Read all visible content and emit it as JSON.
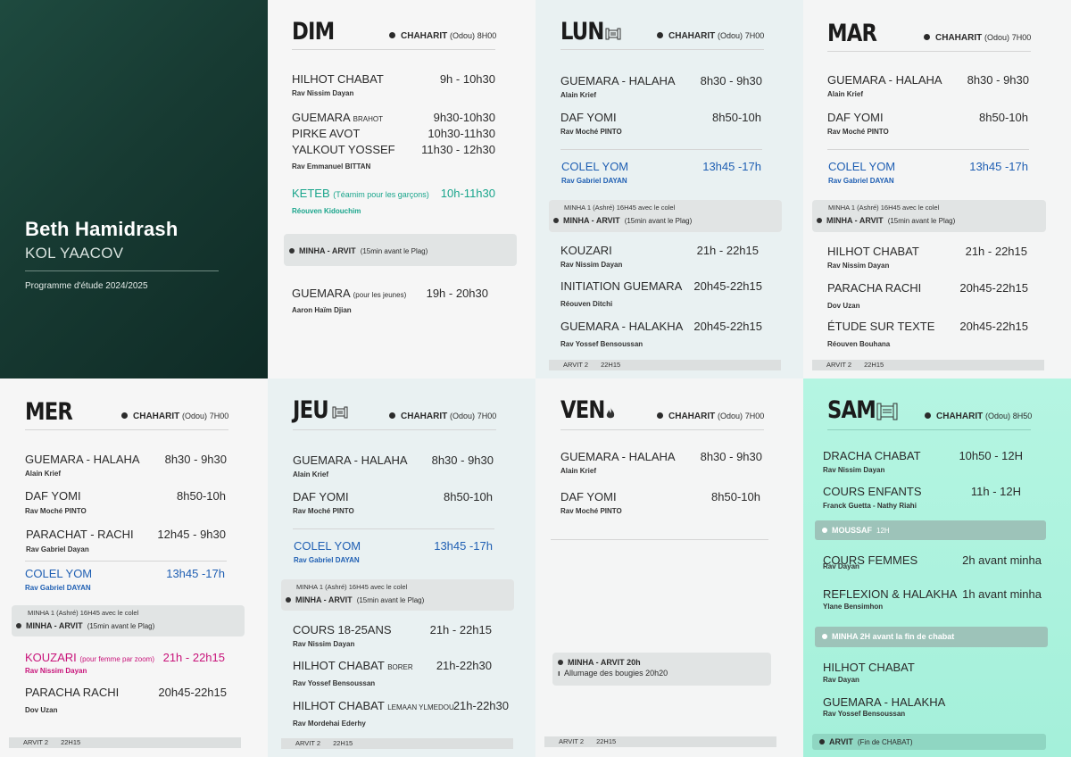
{
  "cover": {
    "title": "Beth Hamidrash",
    "subtitle": "KOL YAACOV",
    "program": "Programme d'étude 2024/2025"
  },
  "shaharit_label": "CHAHARIT",
  "odou": "(Odou)",
  "minha_arvit": "MINHA - ARVIT",
  "plag": "(15min avant le Plag)",
  "minha1": "MINHA 1 (Ashré) 16H45 avec le colel",
  "arvit2": "ARVIT 2",
  "arvit2_time": "22H15",
  "dim": {
    "day": "DIM",
    "shaharit": "8H00",
    "s1_name": "HILHOT CHABAT",
    "s1_time": "9h - 10h30",
    "s1_rav": "Rav Nissim Dayan",
    "s2_name": "GUEMARA",
    "s2_sub": "BRAHOT",
    "s2_time": "9h30-10h30",
    "s3_name": "PIRKE AVOT",
    "s3_time": "10h30-11h30",
    "s4_name": "YALKOUT YOSSEF",
    "s4_time": "11h30 - 12h30",
    "s4_rav": "Rav Emmanuel  BITTAN",
    "s5_name": "KETEB",
    "s5_sub": "(Téamim pour les garçons)",
    "s5_time": "10h-11h30",
    "s5_rav": "Réouven Kidouchim",
    "s6_name": "GUEMARA",
    "s6_sub": "(pour les jeunes)",
    "s6_time": "19h - 20h30",
    "s6_rav": "Aaron Haïm Djian"
  },
  "lun": {
    "day": "LUN",
    "shaharit": "7H00",
    "s1_name": "GUEMARA - HALAHA",
    "s1_time": "8h30 - 9h30",
    "s1_rav": "Alain Krief",
    "s2_name": "DAF YOMI",
    "s2_time": "8h50-10h",
    "s2_rav": "Rav Moché PINTO",
    "s3_name": "COLEL YOM",
    "s3_time": "13h45 -17h",
    "s3_rav": "Rav Gabriel DAYAN",
    "s4_name": "KOUZARI",
    "s4_time": "21h - 22h15",
    "s4_rav": "Rav Nissim Dayan",
    "s5_name": "INITIATION GUEMARA",
    "s5_time": "20h45-22h15",
    "s5_rav": "Réouven Ditchi",
    "s6_name": "GUEMARA - HALAKHA",
    "s6_time": "20h45-22h15",
    "s6_rav": "Rav Yossef Bensoussan"
  },
  "mar": {
    "day": "MAR",
    "shaharit": "7H00",
    "s1_name": "GUEMARA - HALAHA",
    "s1_time": "8h30 - 9h30",
    "s1_rav": "Alain Krief",
    "s2_name": "DAF YOMI",
    "s2_time": "8h50-10h",
    "s2_rav": "Rav Moché PINTO",
    "s3_name": "COLEL YOM",
    "s3_time": "13h45 -17h",
    "s3_rav": "Rav Gabriel DAYAN",
    "s4_name": "HILHOT CHABAT",
    "s4_time": "21h - 22h15",
    "s4_rav": "Rav Nissim Dayan",
    "s5_name": "PARACHA RACHI",
    "s5_time": "20h45-22h15",
    "s5_rav": "Dov Uzan",
    "s6_name": "ÉTUDE SUR TEXTE",
    "s6_time": "20h45-22h15",
    "s6_rav": "Réouven Bouhana"
  },
  "mer": {
    "day": "MER",
    "shaharit": "7H00",
    "s1_name": "GUEMARA - HALAHA",
    "s1_time": "8h30 - 9h30",
    "s1_rav": "Alain Krief",
    "s2_name": "DAF YOMI",
    "s2_time": "8h50-10h",
    "s2_rav": "Rav Moché PINTO",
    "s3_name": "PARACHAT - RACHI",
    "s3_time": "12h45 - 9h30",
    "s3_rav": "Rav Gabriel Dayan",
    "s4_name": "COLEL YOM",
    "s4_time": "13h45 -17h",
    "s4_rav": "Rav Gabriel DAYAN",
    "s5_name": "KOUZARI",
    "s5_sub": "(pour femme par zoom)",
    "s5_time": "21h - 22h15",
    "s5_rav": "Rav Nissim Dayan",
    "s6_name": "PARACHA RACHI",
    "s6_time": "20h45-22h15",
    "s6_rav": "Dov Uzan"
  },
  "jeu": {
    "day": "JEU",
    "shaharit": "7H00",
    "s1_name": "GUEMARA - HALAHA",
    "s1_time": "8h30 - 9h30",
    "s1_rav": "Alain Krief",
    "s2_name": "DAF YOMI",
    "s2_time": "8h50-10h",
    "s2_rav": "Rav Moché PINTO",
    "s3_name": "COLEL YOM",
    "s3_time": "13h45 -17h",
    "s3_rav": "Rav Gabriel DAYAN",
    "s4_name": "COURS  18-25ANS",
    "s4_time": "21h - 22h15",
    "s4_rav": "Rav Nissim Dayan",
    "s5_name": "HILHOT CHABAT",
    "s5_sub": "BORER",
    "s5_time": "21h-22h30",
    "s5_rav": "Rav Yossef Bensoussan",
    "s6_name": "HILHOT CHABAT",
    "s6_sub": "LEMAAN YLMEDOU",
    "s6_time": "21h-22h30",
    "s6_rav": "Rav Mordehai Ederhy"
  },
  "ven": {
    "day": "VEN",
    "shaharit": "7H00",
    "s1_name": "GUEMARA - HALAHA",
    "s1_time": "8h30 - 9h30",
    "s1_rav": "Alain Krief",
    "s2_name": "DAF YOMI",
    "s2_time": "8h50-10h",
    "s2_rav": "Rav Moché PINTO",
    "box_line1": "MINHA - ARVIT  20h",
    "box_line2": "Allumage des bougies 20h20"
  },
  "sam": {
    "day": "SAM",
    "shaharit": "8H50",
    "s1_name": "DRACHA CHABAT",
    "s1_time": "10h50 - 12H",
    "s1_rav": "Rav Nissim Dayan",
    "s2_name": "COURS ENFANTS",
    "s2_time": "11h - 12H",
    "s2_rav": "Franck Guetta - Nathy Riahi",
    "moussaf": "MOUSSAF",
    "moussaf_time": "12H",
    "s3_name": "COURS FEMMES",
    "s3_time": "2h avant minha",
    "s3_rav": "Rav Dayan",
    "s4_name": "REFLEXION & HALAKHA",
    "s4_time": "1h avant minha",
    "s4_rav": "Ylane Bensimhon",
    "minha_bar": "MINHA  2H avant la fin de chabat",
    "s5_name": "HILHOT CHABAT",
    "s5_rav": "Rav Dayan",
    "s6_name": "GUEMARA - HALAKHA",
    "s6_rav": "Rav Yossef Bensoussan",
    "arvit": "ARVIT",
    "arvit_sub": "(Fin de CHABAT)"
  },
  "colors": {
    "cover_bg": "#173a32",
    "accent_blue": "#1f5fb3",
    "accent_green": "#1aa58c",
    "accent_pink": "#c8137a",
    "sam_bg": "#9ff0dc"
  }
}
